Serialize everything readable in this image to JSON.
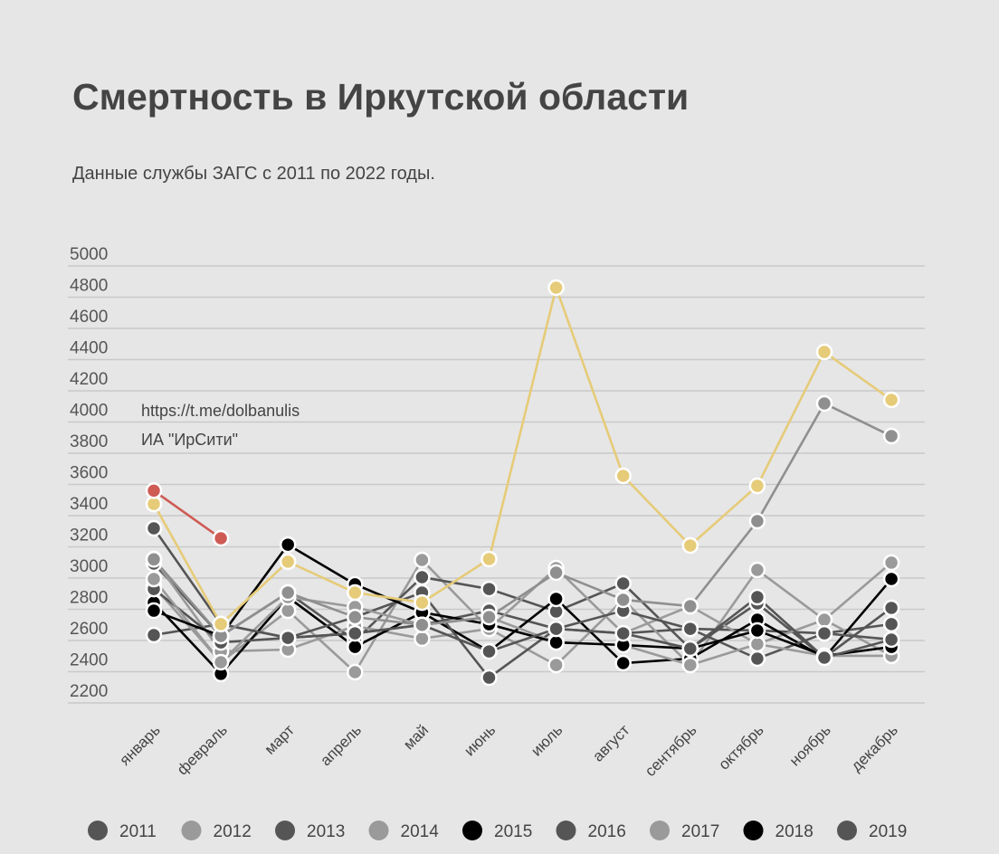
{
  "title": "Смертность в Иркутской области",
  "subtitle": "Данные службы ЗАГС с 2011 по 2022 годы.",
  "annotations": [
    "https://t.me/dolbanulis",
    "ИА \"ИрСити\""
  ],
  "chart_data": {
    "type": "line",
    "title": "Смертность в Иркутской области",
    "subtitle": "Данные службы ЗАГС с 2011 по 2022 годы.",
    "xlabel": "",
    "ylabel": "",
    "ylim": [
      2200,
      5000
    ],
    "yticks": [
      5000,
      4800,
      4600,
      4400,
      4200,
      4000,
      3800,
      3600,
      3400,
      3200,
      3000,
      2800,
      2600,
      2400,
      2200
    ],
    "grid": true,
    "legend_placement": "bottom",
    "categories": [
      "январь",
      "февраль",
      "март",
      "апрель",
      "май",
      "июнь",
      "июль",
      "август",
      "сентябрь",
      "октябрь",
      "ноябрь",
      "декабрь"
    ],
    "series": [
      {
        "name": "2011",
        "color": "#555555",
        "values": [
          2635,
          2705,
          2617,
          2646,
          2700,
          2791,
          2675,
          2646,
          2675,
          2664,
          2646,
          2705
        ]
      },
      {
        "name": "2012",
        "color": "#9a9a9a",
        "values": [
          2948,
          2461,
          2791,
          2397,
          3116,
          2675,
          2443,
          2861,
          2443,
          3052,
          2733,
          2502
        ]
      },
      {
        "name": "2013",
        "color": "#555555",
        "values": [
          3093,
          2629,
          2907,
          2600,
          3006,
          2930,
          2786,
          2965,
          2548,
          2838,
          2490,
          2809
        ]
      },
      {
        "name": "2014",
        "color": "#9a9a9a",
        "values": [
          3122,
          2530,
          2542,
          2693,
          2612,
          2675,
          3064,
          2646,
          2820,
          2577,
          2733,
          3099
        ]
      },
      {
        "name": "2015",
        "color": "#000000",
        "values": [
          2843,
          2386,
          2878,
          2559,
          2780,
          2530,
          2867,
          2455,
          2484,
          2733,
          2490,
          2994
        ]
      },
      {
        "name": "2016",
        "color": "#555555",
        "values": [
          2930,
          2588,
          2617,
          2750,
          2907,
          2362,
          2675,
          2791,
          2675,
          2484,
          2646,
          2606
        ]
      },
      {
        "name": "2017",
        "color": "#9a9a9a",
        "values": [
          2994,
          2461,
          2878,
          2815,
          2700,
          2750,
          2588,
          2571,
          2443,
          2577,
          2502,
          2502
        ]
      },
      {
        "name": "2018",
        "color": "#000000",
        "values": [
          2791,
          2629,
          3214,
          2960,
          2780,
          2704,
          2588,
          2571,
          2548,
          2664,
          2502,
          2559
        ]
      },
      {
        "name": "2019",
        "color": "#555555",
        "values": [
          3319,
          2705,
          2617,
          2646,
          2700,
          2530,
          2675,
          2646,
          2548,
          2878,
          2490,
          2606
        ]
      },
      {
        "color": "#8f8f8f",
        "values": [
          3120,
          2629,
          2907,
          2750,
          2700,
          2750,
          3035,
          2861,
          2820,
          3365,
          4119,
          3910
        ]
      },
      {
        "color": "#e6cb78",
        "values": [
          3475,
          2705,
          3105,
          2907,
          2843,
          3122,
          4861,
          3655,
          3209,
          3591,
          4449,
          4142
        ]
      },
      {
        "color": "#cf5b55",
        "values": [
          3560,
          3255,
          null,
          null,
          null,
          null,
          null,
          null,
          null,
          null,
          null,
          null
        ]
      }
    ]
  }
}
